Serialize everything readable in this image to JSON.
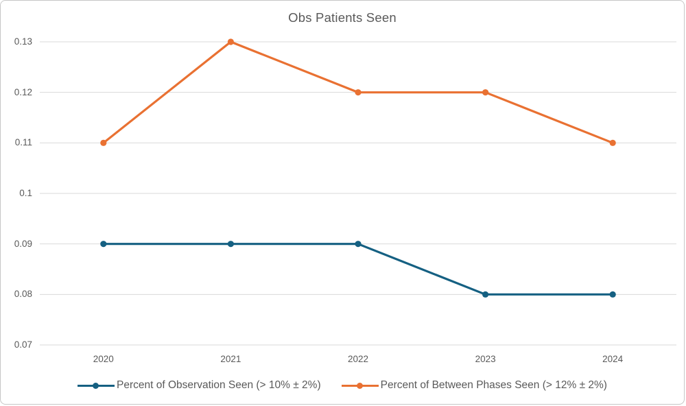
{
  "chart_data": {
    "type": "line",
    "title": "Obs Patients Seen",
    "categories": [
      "2020",
      "2021",
      "2022",
      "2023",
      "2024"
    ],
    "series": [
      {
        "name": "Percent of Observation Seen (> 10% ± 2%)",
        "color": "#156082",
        "values": [
          0.09,
          0.09,
          0.09,
          0.08,
          0.08
        ]
      },
      {
        "name": "Percent of Between Phases Seen (> 12% ± 2%)",
        "color": "#E97132",
        "values": [
          0.11,
          0.13,
          0.12,
          0.12,
          0.11
        ]
      }
    ],
    "ylim": [
      0.07,
      0.13
    ],
    "yticks": [
      0.07,
      0.08,
      0.09,
      0.1,
      0.11,
      0.12,
      0.13
    ],
    "ytick_labels": [
      "0.07",
      "0.08",
      "0.09",
      "0.1",
      "0.11",
      "0.12",
      "0.13"
    ],
    "xlabel": "",
    "ylabel": "",
    "grid": true,
    "legend_position": "bottom"
  },
  "colors": {
    "text": "#595959",
    "gridline": "#D9D9D9",
    "frame_border": "#C6C6C6",
    "background": "#FFFFFF"
  }
}
